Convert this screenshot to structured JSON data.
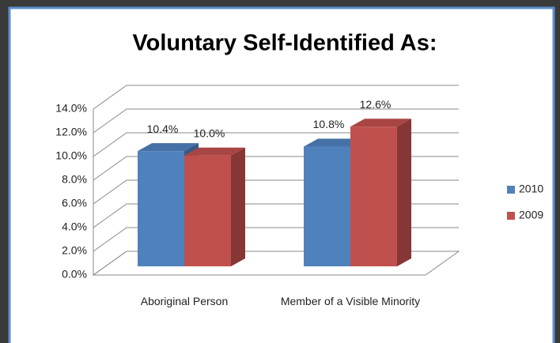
{
  "chart_data": {
    "type": "bar3d",
    "title": "Voluntary Self-Identified As:",
    "categories": [
      "Aboriginal Person",
      "Member of a Visible Minority"
    ],
    "series": [
      {
        "name": "2010",
        "color": "#4f81bd",
        "values": [
          10.4,
          10.8
        ],
        "value_labels": [
          "10.4%",
          "10.8%"
        ]
      },
      {
        "name": "2009",
        "color": "#c0504d",
        "values": [
          10.0,
          12.6
        ],
        "value_labels": [
          "10.0%",
          "12.6%"
        ]
      }
    ],
    "ylim": [
      0,
      14
    ],
    "yticks": [
      {
        "value": 0,
        "label": "0.0%"
      },
      {
        "value": 2,
        "label": "2.0%"
      },
      {
        "value": 4,
        "label": "4.0%"
      },
      {
        "value": 6,
        "label": "6.0%"
      },
      {
        "value": 8,
        "label": "8.0%"
      },
      {
        "value": 10,
        "label": "10.0%"
      },
      {
        "value": 12,
        "label": "12.0%"
      },
      {
        "value": 14,
        "label": "14.0%"
      }
    ],
    "grid": true,
    "legend": "right"
  }
}
